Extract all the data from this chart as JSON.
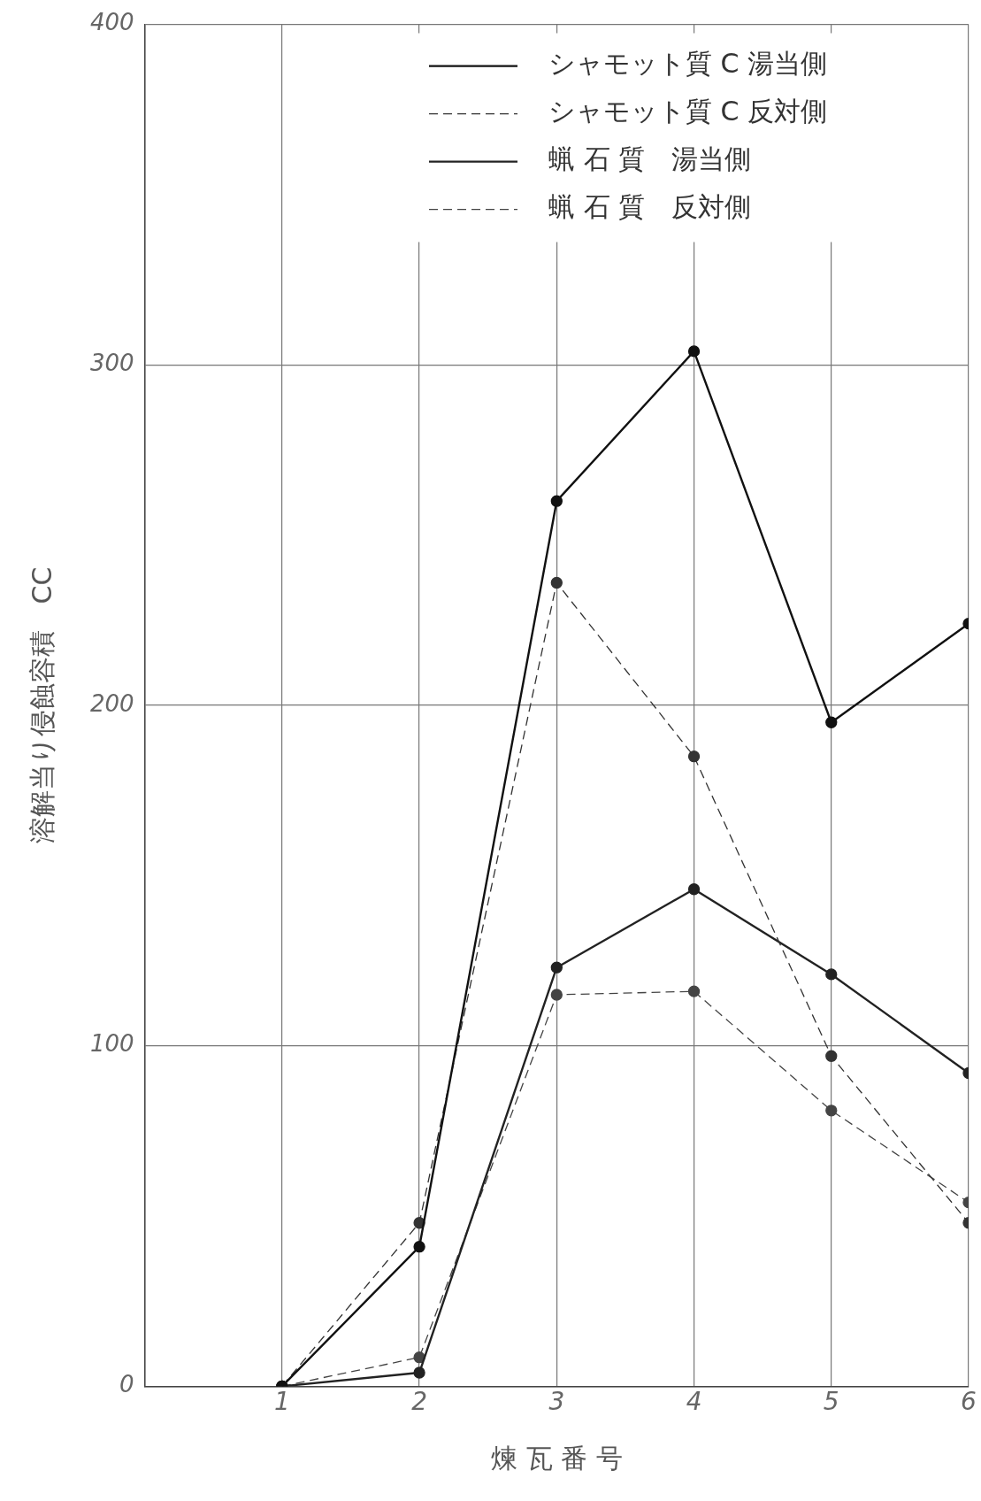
{
  "chart_data": {
    "type": "line",
    "xlabel": "煉 瓦 番 号",
    "ylabel": "溶解当り侵蝕容積　CC",
    "x": [
      1,
      2,
      3,
      4,
      5,
      6
    ],
    "xlim": [
      0,
      6
    ],
    "xticks": [
      {
        "value": 0,
        "label": null
      },
      1,
      2,
      3,
      4,
      5,
      6
    ],
    "ylim": [
      0,
      400
    ],
    "yticks": [
      0,
      100,
      200,
      300,
      400
    ],
    "grid": true,
    "legend": "top right",
    "marker": "circle",
    "series": [
      {
        "name": "シャモット質 C 湯当側",
        "color": "#111111",
        "line_style": "solid",
        "values": [
          0,
          41,
          260,
          304,
          195,
          224
        ]
      },
      {
        "name": "シャモット質 C 反対側",
        "color": "#333333",
        "line_style": "dashed",
        "values": [
          0,
          48,
          236,
          185,
          97,
          48
        ]
      },
      {
        "name": "蝋 石 質　湯当側",
        "color": "#222222",
        "line_style": "solid",
        "values": [
          0,
          4,
          123,
          146,
          121,
          92
        ]
      },
      {
        "name": "蝋 石 質　反対側",
        "color": "#444444",
        "line_style": "dashed",
        "values": [
          0,
          8.5,
          115,
          116,
          81,
          54
        ]
      }
    ]
  }
}
